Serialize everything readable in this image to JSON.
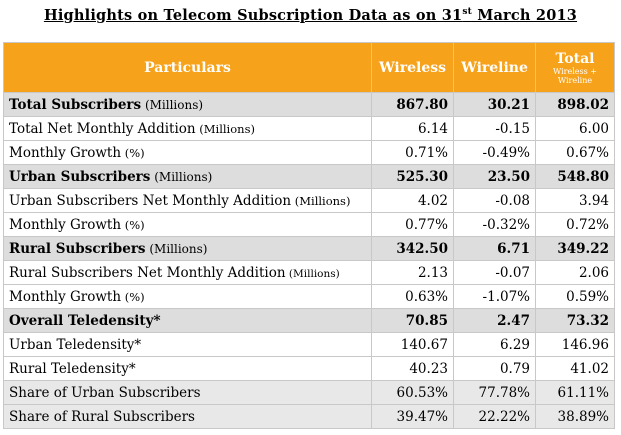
{
  "title_main": "Highlights on Telecom Subscription Data as on 31",
  "title_sup": "st",
  "title_end": " March 2013",
  "headers": {
    "particulars": "Particulars",
    "wireless": "Wireless",
    "wireline": "Wireline",
    "total": "Total",
    "total_sub1": "Wireless +",
    "total_sub2": "Wireline"
  },
  "rows": [
    {
      "label": "Total Subscribers",
      "unit": " (Millions)",
      "wireless": "867.80",
      "wireline": "30.21",
      "total": "898.02"
    },
    {
      "label": "Total Net Monthly Addition",
      "unit": " (Millions)",
      "wireless": "6.14",
      "wireline": "-0.15",
      "total": "6.00"
    },
    {
      "label": "Monthly Growth",
      "unit": " (%)",
      "wireless": "0.71%",
      "wireline": "-0.49%",
      "total": "0.67%"
    },
    {
      "label": "Urban Subscribers",
      "unit": " (Millions)",
      "wireless": "525.30",
      "wireline": "23.50",
      "total": "548.80"
    },
    {
      "label": "Urban Subscribers Net Monthly Addition",
      "unit": " (Millions)",
      "wireless": "4.02",
      "wireline": "-0.08",
      "total": "3.94"
    },
    {
      "label": "Monthly Growth",
      "unit": " (%)",
      "wireless": "0.77%",
      "wireline": "-0.32%",
      "total": "0.72%"
    },
    {
      "label": "Rural Subscribers",
      "unit": " (Millions)",
      "wireless": "342.50",
      "wireline": "6.71",
      "total": "349.22"
    },
    {
      "label": "Rural Subscribers Net Monthly Addition",
      "unit": " (Millions)",
      "wireless": "2.13",
      "wireline": "-0.07",
      "total": "2.06"
    },
    {
      "label": "Monthly Growth",
      "unit": " (%)",
      "wireless": "0.63%",
      "wireline": "-1.07%",
      "total": "0.59%"
    },
    {
      "label": "Overall Teledensity*",
      "unit": "",
      "wireless": "70.85",
      "wireline": "2.47",
      "total": "73.32"
    },
    {
      "label": "Urban Teledensity*",
      "unit": "",
      "wireless": "140.67",
      "wireline": "6.29",
      "total": "146.96"
    },
    {
      "label": "Rural Teledensity*",
      "unit": "",
      "wireless": "40.23",
      "wireline": "0.79",
      "total": "41.02"
    },
    {
      "label": "Share of Urban Subscribers",
      "unit": "",
      "wireless": "60.53%",
      "wireline": "77.78%",
      "total": "61.11%"
    },
    {
      "label": "Share of Rural Subscribers",
      "unit": "",
      "wireless": "39.47%",
      "wireline": "22.22%",
      "total": "38.89%"
    }
  ]
}
